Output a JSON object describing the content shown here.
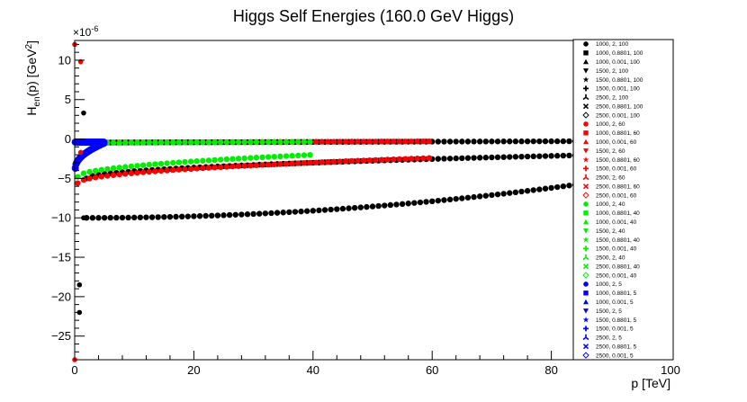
{
  "chart_data": {
    "type": "scatter",
    "title": "Higgs Self Energies (160.0 GeV Higgs)",
    "xlabel": "p [TeV]",
    "ylabel": "H_en(p) [GeV^2]",
    "y_exponent_label": "×10^-6",
    "xlim": [
      0,
      100
    ],
    "ylim": [
      -28,
      12.5
    ],
    "x_ticks": [
      0,
      20,
      40,
      60,
      80,
      100
    ],
    "y_ticks": [
      -25,
      -20,
      -15,
      -10,
      -5,
      0,
      5,
      10
    ],
    "grid": false,
    "legend_position": "right",
    "colors": {
      "black": "#000000",
      "red": "#ff0000",
      "green": "#00ee00",
      "blue": "#0000ff"
    },
    "legend": [
      {
        "label": "1000, 2, 100",
        "color": "#000000",
        "marker": "circle"
      },
      {
        "label": "1000, 0.8801, 100",
        "color": "#000000",
        "marker": "square"
      },
      {
        "label": "1000, 0.001, 100",
        "color": "#000000",
        "marker": "triangle-up"
      },
      {
        "label": "1500, 2, 100",
        "color": "#000000",
        "marker": "triangle-down"
      },
      {
        "label": "1500, 0.8801, 100",
        "color": "#000000",
        "marker": "star"
      },
      {
        "label": "1500, 0.001, 100",
        "color": "#000000",
        "marker": "cross"
      },
      {
        "label": "2500, 2, 100",
        "color": "#000000",
        "marker": "tristar"
      },
      {
        "label": "2500, 0.8801, 100",
        "color": "#000000",
        "marker": "x"
      },
      {
        "label": "2500, 0.001, 100",
        "color": "#000000",
        "marker": "diamond-open"
      },
      {
        "label": "1000, 2, 60",
        "color": "#ff0000",
        "marker": "circle"
      },
      {
        "label": "1000, 0.8801, 60",
        "color": "#ff0000",
        "marker": "square"
      },
      {
        "label": "1000, 0.001, 60",
        "color": "#ff0000",
        "marker": "triangle-up"
      },
      {
        "label": "1500, 2, 60",
        "color": "#ff0000",
        "marker": "triangle-down"
      },
      {
        "label": "1500, 0.8801, 60",
        "color": "#ff0000",
        "marker": "star"
      },
      {
        "label": "1500, 0.001, 60",
        "color": "#ff0000",
        "marker": "cross"
      },
      {
        "label": "2500, 2, 60",
        "color": "#ff0000",
        "marker": "tristar"
      },
      {
        "label": "2500, 0.8801, 60",
        "color": "#ff0000",
        "marker": "x"
      },
      {
        "label": "2500, 0.001, 60",
        "color": "#ff0000",
        "marker": "diamond-open"
      },
      {
        "label": "1000, 2, 40",
        "color": "#00ee00",
        "marker": "circle"
      },
      {
        "label": "1000, 0.8801, 40",
        "color": "#00ee00",
        "marker": "square"
      },
      {
        "label": "1000, 0.001, 40",
        "color": "#00ee00",
        "marker": "triangle-up"
      },
      {
        "label": "1500, 2, 40",
        "color": "#00ee00",
        "marker": "triangle-down"
      },
      {
        "label": "1500, 0.8801, 40",
        "color": "#00ee00",
        "marker": "star"
      },
      {
        "label": "1500, 0.001, 40",
        "color": "#00ee00",
        "marker": "cross"
      },
      {
        "label": "2500, 2, 40",
        "color": "#00ee00",
        "marker": "tristar"
      },
      {
        "label": "2500, 0.8801, 40",
        "color": "#00ee00",
        "marker": "x"
      },
      {
        "label": "2500, 0.001, 40",
        "color": "#00ee00",
        "marker": "diamond-open"
      },
      {
        "label": "1000, 2, 5",
        "color": "#0000ff",
        "marker": "circle"
      },
      {
        "label": "1000, 0.8801, 5",
        "color": "#0000ff",
        "marker": "square"
      },
      {
        "label": "1000, 0.001, 5",
        "color": "#0000ff",
        "marker": "triangle-up"
      },
      {
        "label": "1500, 2, 5",
        "color": "#0000ff",
        "marker": "triangle-down"
      },
      {
        "label": "1500, 0.8801, 5",
        "color": "#0000ff",
        "marker": "star"
      },
      {
        "label": "1500, 0.001, 5",
        "color": "#0000ff",
        "marker": "cross"
      },
      {
        "label": "2500, 2, 5",
        "color": "#0000ff",
        "marker": "tristar"
      },
      {
        "label": "2500, 0.8801, 5",
        "color": "#0000ff",
        "marker": "x"
      },
      {
        "label": "2500, 0.001, 5",
        "color": "#0000ff",
        "marker": "diamond-open"
      }
    ],
    "series": [
      {
        "color": "#000000",
        "x_range": [
          2,
          100
        ],
        "y_start": -10,
        "y_end": -4,
        "shape": "convex"
      },
      {
        "color": "#000000",
        "x_range": [
          2,
          100
        ],
        "y_start": -5,
        "y_end": -1.8,
        "shape": "concave"
      },
      {
        "color": "#000000",
        "x_range": [
          2,
          100
        ],
        "y_start": -0.45,
        "y_end": -0.25,
        "shape": "linear"
      },
      {
        "color": "#ff0000",
        "x_range": [
          0.5,
          60
        ],
        "y_start": -5.6,
        "y_end": -2.4,
        "shape": "concave"
      },
      {
        "color": "#ff0000",
        "x_range": [
          0.5,
          60
        ],
        "y_start": -0.45,
        "y_end": -0.3,
        "shape": "linear"
      },
      {
        "color": "#00ee00",
        "x_range": [
          0.5,
          40
        ],
        "y_start": -4.8,
        "y_end": -2.0,
        "shape": "concave"
      },
      {
        "color": "#00ee00",
        "x_range": [
          0.5,
          40
        ],
        "y_start": -0.5,
        "y_end": -0.35,
        "shape": "linear"
      },
      {
        "color": "#0000ff",
        "x_range": [
          0.1,
          5
        ],
        "y_start": -3.7,
        "y_end": -0.5,
        "shape": "concave"
      },
      {
        "color": "#0000ff",
        "x_range": [
          0.1,
          5
        ],
        "y_start": -0.4,
        "y_end": -0.4,
        "shape": "linear"
      }
    ],
    "outliers": [
      {
        "x": 0,
        "y": 12,
        "color": "#ff0000"
      },
      {
        "x": 1,
        "y": 9.8,
        "color": "#ff0000"
      },
      {
        "x": 1.5,
        "y": 3.3,
        "color": "#000000"
      },
      {
        "x": 1.5,
        "y": -10,
        "color": "#000000"
      },
      {
        "x": 0.8,
        "y": -18.5,
        "color": "#000000"
      },
      {
        "x": 0.8,
        "y": -22,
        "color": "#000000"
      },
      {
        "x": 0,
        "y": -28,
        "color": "#ff0000"
      },
      {
        "x": 1,
        "y": -1.7,
        "color": "#ff0000"
      }
    ]
  }
}
